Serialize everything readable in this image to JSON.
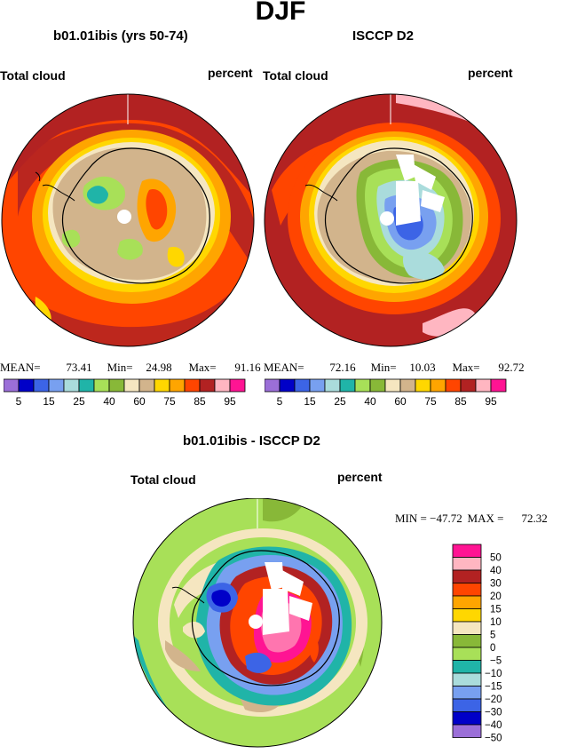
{
  "page": {
    "season_title": "DJF"
  },
  "panels": {
    "model": {
      "title": "b01.01ibis (yrs 50-74)",
      "left_label": "Total cloud",
      "right_label": "percent",
      "stats": {
        "mean_label": "MEAN=",
        "mean": "73.41",
        "min_label": "Min=",
        "min": "24.98",
        "max_label": "Max=",
        "max": "91.16"
      }
    },
    "obs": {
      "title": "ISCCP D2",
      "left_label": "Total cloud",
      "right_label": "percent",
      "stats": {
        "mean_label": "MEAN=",
        "mean": "72.16",
        "min_label": "Min=",
        "min": "10.03",
        "max_label": "Max=",
        "max": "92.72"
      }
    },
    "diff": {
      "title": "b01.01ibis - ISCCP D2",
      "left_label": "Total cloud",
      "right_label": "percent",
      "stats": {
        "min_label": "MIN = ",
        "min": "−47.72",
        "max_label": "MAX = ",
        "max": "72.32"
      }
    }
  },
  "colorbar_top": {
    "colors": [
      "#9b6fd8",
      "#0000c8",
      "#3c64e6",
      "#78a0f0",
      "#aadcdc",
      "#20b4a8",
      "#a8e058",
      "#88b838",
      "#f5e6c0",
      "#d2b48c",
      "#ffd700",
      "#ffa500",
      "#ff4500",
      "#b22222",
      "#ffb6c1",
      "#ff1493"
    ],
    "tick_labels": [
      "5",
      "15",
      "25",
      "40",
      "60",
      "75",
      "85",
      "95"
    ]
  },
  "colorbar_diff": {
    "colors_top_to_bottom": [
      "#ff1493",
      "#ffb6c1",
      "#b22222",
      "#ff4500",
      "#ffa500",
      "#ffd700",
      "#f5e6c0",
      "#88b838",
      "#a8e058",
      "#20b4a8",
      "#aadcdc",
      "#78a0f0",
      "#3c64e6",
      "#0000c8",
      "#9b6fd8"
    ],
    "tick_labels": [
      "50",
      "40",
      "30",
      "20",
      "15",
      "10",
      "5",
      "0",
      "−5",
      "−10",
      "−15",
      "−20",
      "−30",
      "−40",
      "−50"
    ]
  }
}
